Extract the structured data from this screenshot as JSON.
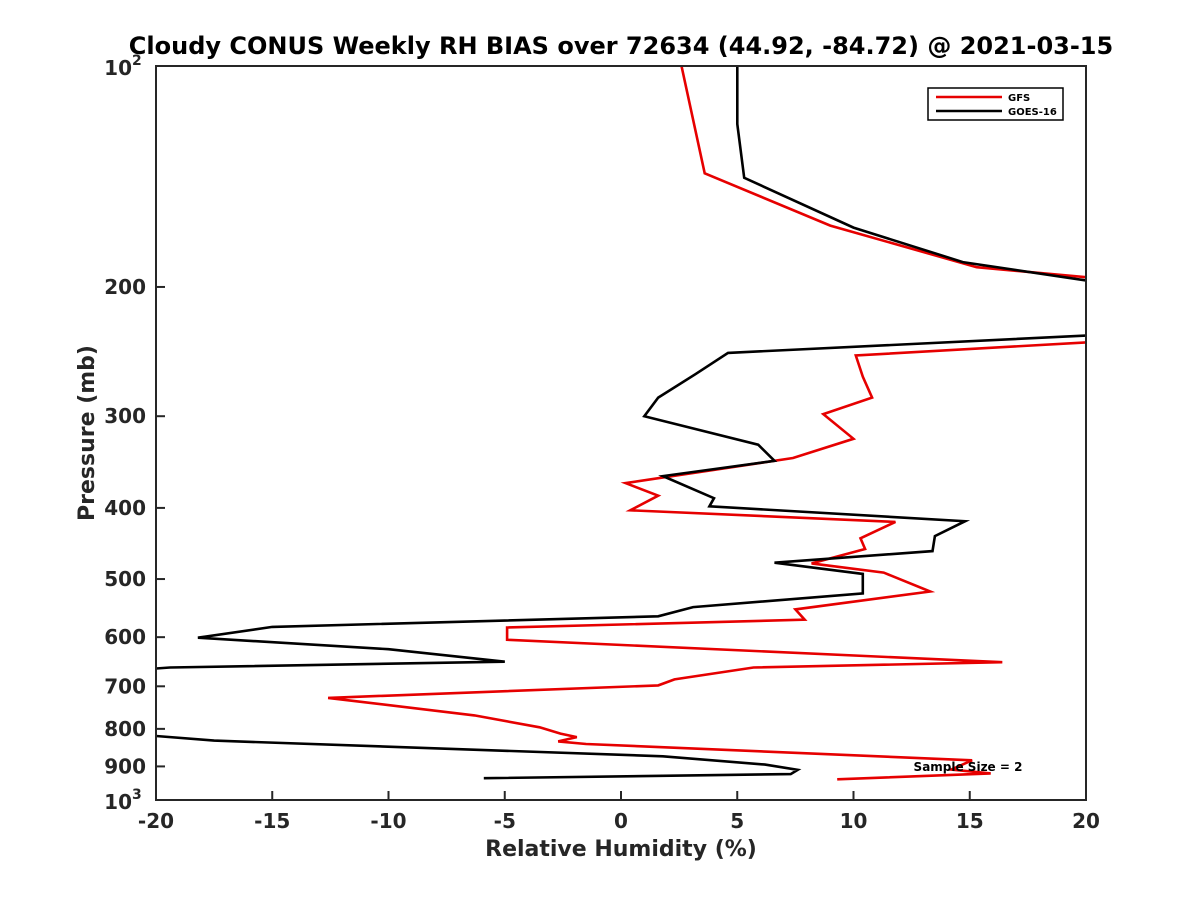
{
  "chart_data": {
    "type": "line",
    "title": "Cloudy CONUS Weekly RH BIAS over 72634 (44.92, -84.72) @ 2021-03-15",
    "xlabel": "Relative Humidity (%)",
    "ylabel": "Pressure (mb)",
    "xlim": [
      -20,
      20
    ],
    "ylim": [
      100,
      1000
    ],
    "y_scale": "log",
    "y_reversed": true,
    "grid": false,
    "legend_position": "top-right",
    "x_ticks": [
      "-20",
      "-15",
      "-10",
      "-5",
      "0",
      "5",
      "10",
      "15",
      "20"
    ],
    "y_ticks": [
      {
        "value": 100,
        "label": "10",
        "sup": "2"
      },
      {
        "value": 200,
        "label": "200"
      },
      {
        "value": 300,
        "label": "300"
      },
      {
        "value": 400,
        "label": "400"
      },
      {
        "value": 500,
        "label": "500"
      },
      {
        "value": 600,
        "label": "600"
      },
      {
        "value": 700,
        "label": "700"
      },
      {
        "value": 800,
        "label": "800"
      },
      {
        "value": 900,
        "label": "900"
      },
      {
        "value": 1000,
        "label": "10",
        "sup": "3"
      }
    ],
    "annotation": "Sample Size = 2",
    "series": [
      {
        "name": "GFS",
        "color": "#e60000",
        "points": [
          [
            2.6,
            100
          ],
          [
            3.6,
            140
          ],
          [
            9.0,
            165
          ],
          [
            15.3,
            188
          ],
          [
            20.0,
            194
          ],
          [
            null,
            null
          ],
          [
            20.0,
            238
          ],
          [
            10.1,
            248
          ],
          [
            10.4,
            265
          ],
          [
            10.8,
            283
          ],
          [
            8.7,
            298
          ],
          [
            10.0,
            322
          ],
          [
            7.4,
            342
          ],
          [
            0.2,
            370
          ],
          [
            1.6,
            385
          ],
          [
            0.4,
            403
          ],
          [
            11.8,
            418
          ],
          [
            10.3,
            440
          ],
          [
            10.5,
            455
          ],
          [
            8.2,
            476
          ],
          [
            11.3,
            490
          ],
          [
            13.3,
            520
          ],
          [
            7.5,
            550
          ],
          [
            7.9,
            568
          ],
          [
            -4.9,
            582
          ],
          [
            -4.9,
            605
          ],
          [
            16.4,
            649
          ],
          [
            5.7,
            660
          ],
          [
            2.3,
            685
          ],
          [
            1.6,
            698
          ],
          [
            -12.6,
            726
          ],
          [
            -6.3,
            767
          ],
          [
            -3.5,
            796
          ],
          [
            -2.6,
            812
          ],
          [
            -1.9,
            821
          ],
          [
            -2.7,
            832
          ],
          [
            -1.5,
            839
          ],
          [
            15.1,
            883
          ],
          [
            14.2,
            909
          ],
          [
            15.9,
            920
          ],
          [
            9.3,
            937
          ]
        ]
      },
      {
        "name": "GOES-16",
        "color": "#000000",
        "points": [
          [
            5.0,
            100
          ],
          [
            5.0,
            120
          ],
          [
            5.3,
            142
          ],
          [
            10.0,
            166
          ],
          [
            14.7,
            185
          ],
          [
            20.0,
            196
          ],
          [
            null,
            null
          ],
          [
            20.0,
            233
          ],
          [
            4.6,
            246
          ],
          [
            3.2,
            263
          ],
          [
            1.6,
            283
          ],
          [
            1.0,
            300
          ],
          [
            5.9,
            328
          ],
          [
            6.6,
            345
          ],
          [
            1.8,
            362
          ],
          [
            4.0,
            388
          ],
          [
            3.8,
            398
          ],
          [
            14.8,
            417
          ],
          [
            13.5,
            437
          ],
          [
            13.4,
            458
          ],
          [
            6.6,
            475
          ],
          [
            10.4,
            492
          ],
          [
            10.4,
            523
          ],
          [
            3.1,
            546
          ],
          [
            1.6,
            562
          ],
          [
            -15.0,
            581
          ],
          [
            -18.2,
            601
          ],
          [
            -10.0,
            623
          ],
          [
            -5.0,
            648
          ],
          [
            -19.4,
            660
          ],
          [
            -20.0,
            662
          ],
          [
            null,
            null
          ],
          [
            -20.0,
            818
          ],
          [
            -17.5,
            830
          ],
          [
            1.8,
            872
          ],
          [
            6.2,
            895
          ],
          [
            7.6,
            910
          ],
          [
            7.3,
            922
          ],
          [
            -5.9,
            934
          ]
        ]
      }
    ]
  }
}
